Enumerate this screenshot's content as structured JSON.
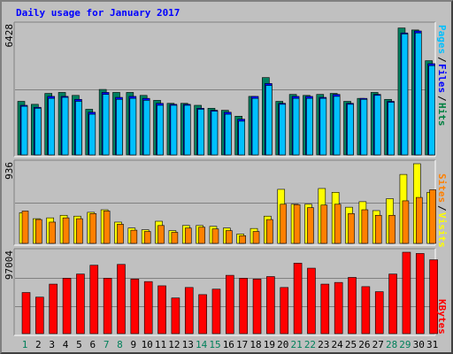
{
  "title": "Daily usage for January 2017",
  "colors": {
    "background": "#c0c0c0",
    "pages": "#00c0ff",
    "files": "#0000ff",
    "hits": "#008040",
    "hits_bar": "#008060",
    "sites": "#ff8000",
    "visits": "#ffff00",
    "kbytes": "#ff0000",
    "weekend": "#00805a",
    "grid": "#808080"
  },
  "chart_data": [
    {
      "type": "bar",
      "name": "hits-files-pages",
      "categories": [
        "1",
        "2",
        "3",
        "4",
        "5",
        "6",
        "7",
        "8",
        "9",
        "10",
        "11",
        "12",
        "13",
        "14",
        "15",
        "16",
        "17",
        "18",
        "19",
        "20",
        "21",
        "22",
        "23",
        "24",
        "25",
        "26",
        "27",
        "28",
        "29",
        "30",
        "31"
      ],
      "weekend_days": [
        "1",
        "7",
        "8",
        "14",
        "15",
        "21",
        "22",
        "28",
        "29"
      ],
      "ytick_max_label": "6428",
      "ylim": [
        0,
        6428
      ],
      "legend": [
        "Pages",
        "/",
        "Files",
        "/",
        "Hits"
      ],
      "series": [
        {
          "name": "Hits",
          "values": [
            2700,
            2550,
            3100,
            3150,
            3000,
            2300,
            3300,
            3150,
            3150,
            3000,
            2750,
            2600,
            2600,
            2500,
            2350,
            2250,
            1950,
            2950,
            3900,
            2700,
            3050,
            3000,
            3050,
            3100,
            2700,
            2850,
            3150,
            2800,
            6400,
            6300,
            4750
          ]
        },
        {
          "name": "Files",
          "values": [
            2500,
            2400,
            2950,
            2950,
            2800,
            2150,
            3150,
            2900,
            2950,
            2850,
            2600,
            2550,
            2550,
            2350,
            2250,
            2150,
            1800,
            2950,
            3600,
            2600,
            2950,
            2950,
            2900,
            3050,
            2600,
            2850,
            3050,
            2700,
            6150,
            6250,
            4600
          ]
        },
        {
          "name": "Pages",
          "values": [
            2450,
            2350,
            2850,
            2900,
            2700,
            2050,
            3050,
            2800,
            2850,
            2750,
            2500,
            2500,
            2500,
            2300,
            2200,
            2050,
            1700,
            2850,
            3500,
            2550,
            2850,
            2850,
            2850,
            2950,
            2550,
            2800,
            3000,
            2650,
            6100,
            6150,
            4500
          ]
        }
      ]
    },
    {
      "type": "bar",
      "name": "visits-sites",
      "categories": [
        "1",
        "2",
        "3",
        "4",
        "5",
        "6",
        "7",
        "8",
        "9",
        "10",
        "11",
        "12",
        "13",
        "14",
        "15",
        "16",
        "17",
        "18",
        "19",
        "20",
        "21",
        "22",
        "23",
        "24",
        "25",
        "26",
        "27",
        "28",
        "29",
        "30",
        "31"
      ],
      "ytick_max_label": "936",
      "ylim": [
        0,
        936
      ],
      "legend": [
        "Sites",
        "/",
        "Visits"
      ],
      "series": [
        {
          "name": "Visits",
          "values": [
            360,
            290,
            300,
            330,
            320,
            365,
            395,
            250,
            180,
            160,
            260,
            150,
            210,
            210,
            200,
            180,
            110,
            175,
            320,
            635,
            460,
            460,
            645,
            600,
            425,
            490,
            385,
            525,
            810,
            936,
            600
          ]
        },
        {
          "name": "Sites",
          "values": [
            380,
            280,
            250,
            300,
            290,
            350,
            380,
            225,
            155,
            140,
            210,
            130,
            180,
            190,
            170,
            150,
            90,
            140,
            280,
            460,
            455,
            420,
            450,
            460,
            350,
            395,
            330,
            330,
            500,
            540,
            630
          ]
        }
      ]
    },
    {
      "type": "bar",
      "name": "kbytes",
      "categories": [
        "1",
        "2",
        "3",
        "4",
        "5",
        "6",
        "7",
        "8",
        "9",
        "10",
        "11",
        "12",
        "13",
        "14",
        "15",
        "16",
        "17",
        "18",
        "19",
        "20",
        "21",
        "22",
        "23",
        "24",
        "25",
        "26",
        "27",
        "28",
        "29",
        "30",
        "31"
      ],
      "ytick_max_label": "97004",
      "ylim": [
        0,
        97004
      ],
      "legend": [
        "KBytes"
      ],
      "series": [
        {
          "name": "KBytes",
          "values": [
            49000,
            43500,
            59000,
            66000,
            71000,
            81500,
            66000,
            82500,
            65000,
            62000,
            57000,
            42500,
            55000,
            46500,
            53000,
            69500,
            66000,
            65000,
            68000,
            55000,
            84000,
            78000,
            59000,
            61000,
            67000,
            56000,
            50000,
            71000,
            97004,
            95500,
            88000
          ]
        }
      ]
    }
  ]
}
